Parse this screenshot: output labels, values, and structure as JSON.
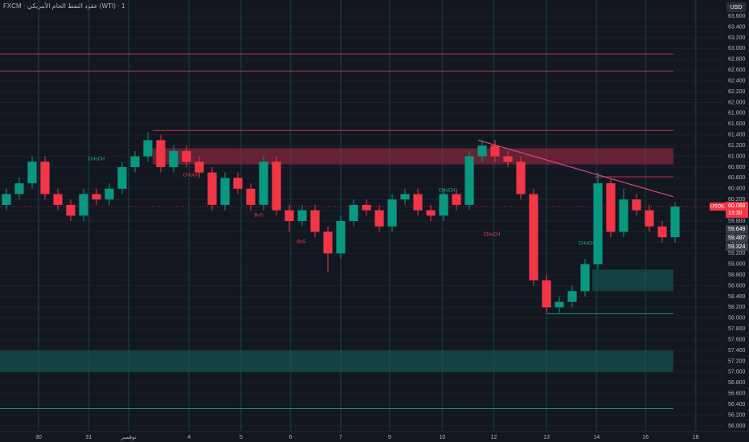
{
  "header": {
    "title": "FXCM · عقود النفط الخام الأمريكي (WTI) · 1",
    "currency": "USD"
  },
  "chart_data": {
    "type": "candlestick",
    "open": [
      60.1,
      60.3,
      60.5,
      60.9,
      60.3,
      60.1,
      59.9,
      60.3,
      60.2,
      60.4,
      60.8,
      61.0,
      61.3,
      60.8,
      61.1,
      60.9,
      60.7,
      60.1,
      60.6,
      60.4,
      60.1,
      60.9,
      60.0,
      59.8,
      60.0,
      59.6,
      59.2,
      59.8,
      60.1,
      60.0,
      59.7,
      60.2,
      60.3,
      60.0,
      59.9,
      60.3,
      60.1,
      61.0,
      61.2,
      61.0,
      60.9,
      60.3,
      58.7,
      58.2,
      58.3,
      58.5,
      59.0,
      60.5,
      59.6,
      60.2,
      60.0,
      59.7,
      59.5
    ],
    "high": [
      60.4,
      60.6,
      61.0,
      61.0,
      60.4,
      60.2,
      60.4,
      60.4,
      60.5,
      60.9,
      61.1,
      61.45,
      61.4,
      61.2,
      61.2,
      61.0,
      60.8,
      60.7,
      60.7,
      60.5,
      61.0,
      61.0,
      60.1,
      60.1,
      60.1,
      59.7,
      59.9,
      60.2,
      60.2,
      60.1,
      60.3,
      60.4,
      60.4,
      60.1,
      60.4,
      60.4,
      61.1,
      61.3,
      61.3,
      61.1,
      61.0,
      60.4,
      58.8,
      58.4,
      58.6,
      59.1,
      60.7,
      60.6,
      60.4,
      60.3,
      60.1,
      59.8,
      60.15
    ],
    "low": [
      60.0,
      60.2,
      60.4,
      60.2,
      60.0,
      59.8,
      59.8,
      60.1,
      60.1,
      60.3,
      60.7,
      60.9,
      60.7,
      60.7,
      60.8,
      60.6,
      60.0,
      60.0,
      60.3,
      60.0,
      60.0,
      59.9,
      59.6,
      59.7,
      59.5,
      58.85,
      59.1,
      59.7,
      59.9,
      59.6,
      59.6,
      60.1,
      59.9,
      59.8,
      59.8,
      60.0,
      60.0,
      60.9,
      60.9,
      60.8,
      60.2,
      58.6,
      58.1,
      58.1,
      58.2,
      58.4,
      58.9,
      59.5,
      59.5,
      59.9,
      59.6,
      59.4,
      59.4
    ],
    "close": [
      60.3,
      60.5,
      60.9,
      60.3,
      60.1,
      59.9,
      60.3,
      60.2,
      60.4,
      60.8,
      61.0,
      61.3,
      60.8,
      61.1,
      60.9,
      60.7,
      60.1,
      60.6,
      60.4,
      60.1,
      60.9,
      60.0,
      59.8,
      60.0,
      59.6,
      59.2,
      59.8,
      60.1,
      60.0,
      59.7,
      60.2,
      60.3,
      60.0,
      59.9,
      60.3,
      60.1,
      61.0,
      61.2,
      61.0,
      60.9,
      60.3,
      58.7,
      58.2,
      58.3,
      58.5,
      59.0,
      60.5,
      59.6,
      60.2,
      60.0,
      59.7,
      59.5,
      60.068
    ],
    "up_color": "#089981",
    "down_color": "#f23645",
    "xlim": [
      -0.5,
      55.75
    ],
    "xticks": [
      {
        "value": 2.5,
        "label": "30"
      },
      {
        "value": 6.4,
        "label": "31"
      },
      {
        "value": 9.5,
        "label": "نوفمبر"
      },
      {
        "value": 14.2,
        "label": "4"
      },
      {
        "value": 18.25,
        "label": "5"
      },
      {
        "value": 22.1,
        "label": "6"
      },
      {
        "value": 26,
        "label": "7"
      },
      {
        "value": 29.8,
        "label": "9"
      },
      {
        "value": 33.9,
        "label": "10"
      },
      {
        "value": 37.9,
        "label": "12"
      },
      {
        "value": 42,
        "label": "13"
      },
      {
        "value": 45.9,
        "label": "14"
      },
      {
        "value": 49.7,
        "label": "16"
      },
      {
        "value": 53.6,
        "label": "18"
      }
    ],
    "ylim": [
      55.91,
      63.9
    ],
    "yticks": [
      {
        "value": 56.0,
        "label": "56.000"
      },
      {
        "value": 56.2,
        "label": "56.200"
      },
      {
        "value": 56.4,
        "label": "56.400"
      },
      {
        "value": 56.6,
        "label": "56.600"
      },
      {
        "value": 56.8,
        "label": "56.800"
      },
      {
        "value": 57.0,
        "label": "57.000"
      },
      {
        "value": 57.2,
        "label": "57.200"
      },
      {
        "value": 57.4,
        "label": "57.400"
      },
      {
        "value": 57.6,
        "label": "57.600"
      },
      {
        "value": 57.8,
        "label": "57.800"
      },
      {
        "value": 58.0,
        "label": "58.000"
      },
      {
        "value": 58.2,
        "label": "58.200"
      },
      {
        "value": 58.4,
        "label": "58.400"
      },
      {
        "value": 58.6,
        "label": "58.600"
      },
      {
        "value": 58.8,
        "label": "58.800"
      },
      {
        "value": 59.0,
        "label": "59.000"
      },
      {
        "value": 59.2,
        "label": "59.200"
      },
      {
        "value": 59.4,
        "label": "59.400"
      },
      {
        "value": 59.6,
        "label": "59.600"
      },
      {
        "value": 59.8,
        "label": "59.800"
      },
      {
        "value": 60.0,
        "label": "60.000"
      },
      {
        "value": 60.2,
        "label": "60.200"
      },
      {
        "value": 60.4,
        "label": "60.400"
      },
      {
        "value": 60.6,
        "label": "60.600"
      },
      {
        "value": 60.8,
        "label": "60.800"
      },
      {
        "value": 61.0,
        "label": "61.000"
      },
      {
        "value": 61.2,
        "label": "61.200"
      },
      {
        "value": 61.4,
        "label": "61.400"
      },
      {
        "value": 61.6,
        "label": "61.600"
      },
      {
        "value": 61.8,
        "label": "61.800"
      },
      {
        "value": 62.0,
        "label": "62.000"
      },
      {
        "value": 62.2,
        "label": "62.200"
      },
      {
        "value": 62.4,
        "label": "62.400"
      },
      {
        "value": 62.6,
        "label": "62.600"
      },
      {
        "value": 62.8,
        "label": "62.800"
      },
      {
        "value": 63.0,
        "label": "63.000"
      },
      {
        "value": 63.2,
        "label": "63.200"
      },
      {
        "value": 63.4,
        "label": "63.400"
      },
      {
        "value": 63.6,
        "label": "63.600"
      }
    ],
    "levels": [
      {
        "value": 62.9,
        "color": "#b2304a"
      },
      {
        "value": 62.58,
        "color": "#b2304a"
      },
      {
        "value": 61.48,
        "color": "#b2304a"
      },
      {
        "value": 60.62,
        "color": "#b2304a"
      },
      {
        "value": 58.08,
        "color": "#1f8f84"
      },
      {
        "value": 56.32,
        "color": "#1f8f84"
      }
    ],
    "zones": [
      {
        "from": 60.85,
        "to": 61.15,
        "color": "#9c2a3f"
      },
      {
        "from": 57.0,
        "to": 57.4,
        "color": "#155e57"
      },
      {
        "from": 58.5,
        "to": 58.9,
        "color": "#155e57"
      }
    ],
    "trendline": {
      "from": 61.3,
      "to": 60.25,
      "color": "#e0457b"
    },
    "annotations": [
      "CHoCH",
      "CHoCH",
      "BoS",
      "BoS",
      "CHoCH",
      "CHoCH",
      "CHoCH"
    ],
    "last_price": {
      "value": 60.068,
      "label": "60.068",
      "countdown": "13:30",
      "name": "USOIL"
    },
    "price_labels": [
      {
        "value": 59.649,
        "label": "59.649"
      },
      {
        "value": 59.487,
        "label": "59.487"
      },
      {
        "value": 59.324,
        "label": "59.324"
      }
    ]
  }
}
